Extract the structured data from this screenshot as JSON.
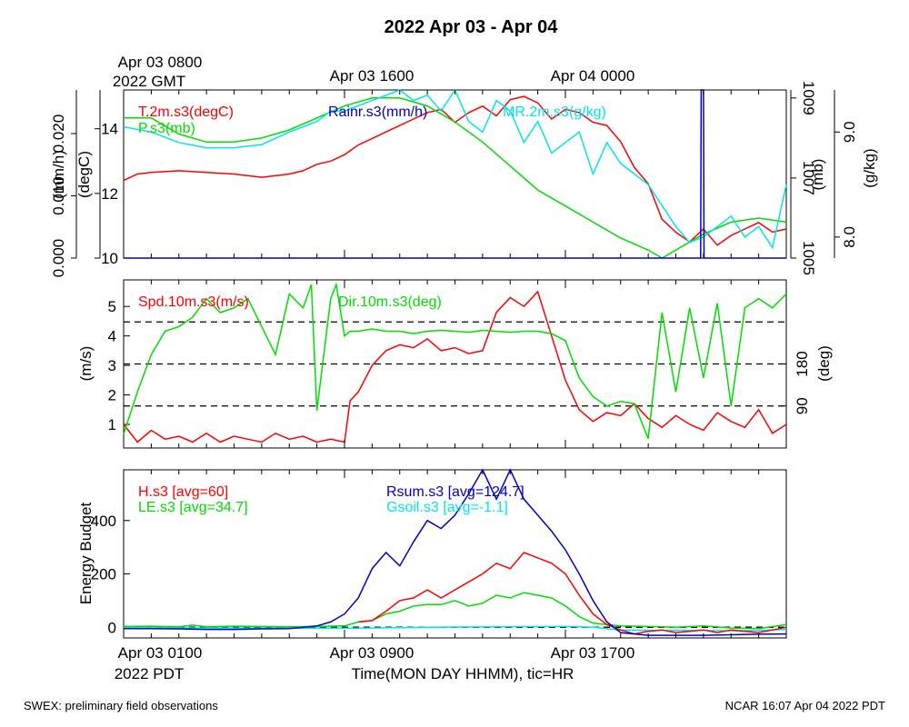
{
  "title": "2022 Apr 03 - Apr 04",
  "footer": {
    "left": "SWEX: preliminary field observations",
    "right": "NCAR 16:07 Apr 04 2022 PDT"
  },
  "top_axis": {
    "ticks": [
      {
        "label": "Apr 03 0800",
        "hour": 0
      },
      {
        "label": "Apr 03 1600",
        "hour": 8
      },
      {
        "label": "Apr 04 0000",
        "hour": 16
      }
    ],
    "sublabel": "2022 GMT"
  },
  "bottom_axis": {
    "ticks": [
      {
        "label": "Apr 03 0100",
        "hour": 0
      },
      {
        "label": "Apr 03 0900",
        "hour": 8
      },
      {
        "label": "Apr 03 1700",
        "hour": 16
      }
    ],
    "sublabel": "2022 PDT",
    "xlabel": "Time(MON DAY HHMM), tic=HR"
  },
  "colors": {
    "red": "#ff0000",
    "green": "#00dd00",
    "blue": "#0000cc",
    "cyan": "#00e5ee"
  },
  "chart_data": [
    {
      "type": "line",
      "panel": "met",
      "xlim": [
        0,
        24
      ],
      "axes": [
        {
          "label": "(mm/h)",
          "side": "left",
          "range": [
            0,
            0.027
          ],
          "ticks": [
            {
              "v": 0,
              "t": "0.000"
            },
            {
              "v": 0.01,
              "t": "0.010"
            },
            {
              "v": 0.02,
              "t": "0.020"
            }
          ]
        },
        {
          "label": "(degC)",
          "side": "left",
          "range": [
            10,
            15.2
          ],
          "ticks": [
            {
              "v": 10,
              "t": "10"
            },
            {
              "v": 12,
              "t": "12"
            },
            {
              "v": 14,
              "t": "14"
            }
          ]
        },
        {
          "label": "(mb)",
          "side": "right",
          "range": [
            1005,
            1009.2
          ],
          "ticks": [
            {
              "v": 1005,
              "t": "1005"
            },
            {
              "v": 1007,
              "t": "1007"
            },
            {
              "v": 1009,
              "t": "1009"
            }
          ]
        },
        {
          "label": "(g/kg)",
          "side": "right",
          "range": [
            7.8,
            9.4
          ],
          "ticks": [
            {
              "v": 8.0,
              "t": "8.0"
            },
            {
              "v": 9.0,
              "t": "9.0"
            }
          ]
        }
      ],
      "series": [
        {
          "name": "T.2m.s3(degC)",
          "color": "red",
          "axis": 1,
          "x": [
            0,
            0.5,
            1,
            2,
            3,
            4,
            5,
            6,
            6.5,
            7,
            7.5,
            8,
            8.5,
            9,
            9.5,
            10,
            10.5,
            11,
            11.5,
            12,
            12.5,
            13,
            13.5,
            14,
            14.5,
            15,
            15.5,
            16,
            16.5,
            17,
            17.5,
            18,
            18.5,
            19,
            19.5,
            20,
            20.5,
            21,
            21.5,
            22,
            22.5,
            23,
            23.5,
            24
          ],
          "y": [
            12.4,
            12.6,
            12.65,
            12.7,
            12.65,
            12.6,
            12.5,
            12.6,
            12.7,
            12.9,
            13.0,
            13.2,
            13.5,
            13.7,
            13.9,
            14.1,
            14.3,
            14.5,
            14.6,
            14.2,
            14.5,
            14.7,
            14.4,
            14.9,
            15.0,
            14.8,
            14.3,
            14.6,
            14.5,
            14.2,
            14.1,
            13.6,
            12.8,
            12.3,
            11.2,
            10.8,
            10.5,
            10.9,
            10.4,
            10.7,
            10.9,
            11.1,
            10.8,
            10.9
          ]
        },
        {
          "name": "P.s3(mb)",
          "color": "green",
          "axis": 2,
          "x": [
            0,
            1,
            2,
            3,
            4,
            5,
            6,
            7,
            8,
            9,
            10,
            11,
            12,
            13,
            14,
            15,
            16,
            17,
            18,
            19,
            19.5,
            20,
            21,
            22,
            23,
            24
          ],
          "y": [
            1008.5,
            1008.5,
            1008.1,
            1007.9,
            1007.9,
            1008.0,
            1008.2,
            1008.5,
            1008.8,
            1009.0,
            1009.0,
            1008.8,
            1008.4,
            1007.9,
            1007.3,
            1006.7,
            1006.3,
            1005.9,
            1005.5,
            1005.2,
            1005.0,
            1005.2,
            1005.6,
            1005.9,
            1006.0,
            1005.9
          ]
        },
        {
          "name": "MR.2m.s3(g/kg)",
          "color": "cyan",
          "axis": 3,
          "x": [
            0,
            1,
            2,
            3,
            4,
            5,
            6,
            7,
            7.5,
            8,
            8.5,
            9,
            9.5,
            10,
            10.5,
            11,
            11.5,
            12,
            12.5,
            13,
            13.5,
            14,
            14.5,
            15,
            15.5,
            16,
            16.5,
            17,
            17.5,
            18,
            18.5,
            19,
            19.5,
            20,
            20.5,
            21,
            21.5,
            22,
            22.5,
            23,
            23.5,
            24
          ],
          "y": [
            9.05,
            9.0,
            8.9,
            8.85,
            8.85,
            8.88,
            9.0,
            9.1,
            9.2,
            9.2,
            9.25,
            9.3,
            9.35,
            9.4,
            9.3,
            9.35,
            9.2,
            9.4,
            9.1,
            9.0,
            9.3,
            9.2,
            8.9,
            9.1,
            8.8,
            8.9,
            9.0,
            8.6,
            8.9,
            8.7,
            8.6,
            8.5,
            8.3,
            8.1,
            7.95,
            8.0,
            8.1,
            8.2,
            8.0,
            8.1,
            7.9,
            8.5
          ]
        },
        {
          "name": "Rainr.s3(mm/h)",
          "color": "blue",
          "axis": 0,
          "x": [
            0,
            20.9,
            20.92,
            21.0,
            21.02,
            24
          ],
          "y": [
            0,
            0,
            0.027,
            0.027,
            0,
            0
          ]
        }
      ]
    },
    {
      "type": "line",
      "panel": "wind",
      "xlim": [
        0,
        24
      ],
      "axes": [
        {
          "label": "(m/s)",
          "side": "left",
          "range": [
            0.2,
            5.9
          ],
          "ticks": [
            {
              "v": 1,
              "t": "1"
            },
            {
              "v": 2,
              "t": "2"
            },
            {
              "v": 3,
              "t": "3"
            },
            {
              "v": 4,
              "t": "4"
            },
            {
              "v": 5,
              "t": "5"
            }
          ]
        },
        {
          "label": "(deg)",
          "side": "right",
          "range": [
            0,
            360
          ],
          "ticks": [
            {
              "v": 90,
              "t": "90"
            },
            {
              "v": 180,
              "t": "180"
            }
          ]
        }
      ],
      "reference_lines_deg": [
        90,
        180,
        270
      ],
      "series": [
        {
          "name": "Spd.10m.s3(m/s)",
          "color": "red",
          "axis": 0,
          "x": [
            0,
            0.5,
            1,
            1.5,
            2,
            2.5,
            3,
            3.5,
            4,
            4.5,
            5,
            5.5,
            6,
            6.5,
            7,
            7.5,
            8,
            8.2,
            8.5,
            9,
            9.5,
            10,
            10.5,
            11,
            11.5,
            12,
            12.5,
            13,
            13.5,
            14,
            14.5,
            15,
            15.5,
            16,
            16.5,
            17,
            17.5,
            18,
            18.5,
            19,
            19.5,
            20,
            20.5,
            21,
            21.5,
            22,
            22.5,
            23,
            23.5,
            24
          ],
          "y": [
            1.0,
            0.4,
            0.8,
            0.5,
            0.6,
            0.4,
            0.7,
            0.4,
            0.6,
            0.5,
            0.4,
            0.7,
            0.5,
            0.6,
            0.4,
            0.5,
            0.4,
            1.8,
            2.1,
            3.0,
            3.5,
            3.7,
            3.6,
            3.9,
            3.5,
            3.6,
            3.4,
            3.5,
            4.8,
            5.3,
            5.0,
            5.5,
            4.0,
            2.5,
            1.5,
            1.1,
            1.4,
            1.3,
            1.7,
            1.2,
            0.9,
            1.3,
            1.0,
            0.8,
            1.4,
            1.1,
            0.9,
            1.5,
            0.7,
            1.0
          ]
        },
        {
          "name": "Dir.10m.s3(deg)",
          "color": "green",
          "axis": 1,
          "x": [
            0,
            0.5,
            1,
            1.5,
            2,
            2.5,
            3,
            3.5,
            4,
            4.5,
            5,
            5.5,
            6,
            6.5,
            6.8,
            7,
            7.5,
            7.7,
            8,
            8.2,
            8.5,
            9,
            9.5,
            10,
            10.5,
            11,
            11.5,
            12,
            12.5,
            13,
            13.5,
            14,
            14.5,
            15,
            15.5,
            16,
            16.5,
            17,
            17.5,
            18,
            18.5,
            19,
            19.5,
            20,
            20.5,
            21,
            21.5,
            22,
            22.5,
            23,
            23.5,
            24
          ],
          "y": [
            30,
            120,
            200,
            250,
            260,
            280,
            320,
            290,
            300,
            320,
            260,
            200,
            330,
            300,
            350,
            80,
            320,
            350,
            240,
            250,
            250,
            255,
            250,
            250,
            245,
            250,
            252,
            250,
            248,
            252,
            250,
            248,
            250,
            250,
            245,
            230,
            150,
            110,
            90,
            100,
            95,
            20,
            290,
            120,
            300,
            150,
            310,
            90,
            300,
            320,
            300,
            330
          ]
        }
      ]
    },
    {
      "type": "line",
      "panel": "energy",
      "xlim": [
        0,
        24
      ],
      "ylabel": "Energy Budget",
      "ylim": [
        -40,
        590
      ],
      "yticks": [
        0,
        200,
        400
      ],
      "series": [
        {
          "name": "H.s3 [avg=60]",
          "color": "red",
          "x": [
            8.5,
            9,
            9.5,
            10,
            10.5,
            11,
            11.5,
            12,
            12.5,
            13,
            13.5,
            14,
            14.5,
            15,
            15.5,
            16,
            16.5,
            17,
            17.5,
            18,
            18.5,
            19,
            19.5,
            20,
            20.5,
            21,
            21.5,
            22,
            22.5,
            23,
            23.5,
            24
          ],
          "y": [
            20,
            25,
            60,
            100,
            110,
            140,
            110,
            140,
            170,
            200,
            240,
            220,
            280,
            260,
            240,
            200,
            120,
            50,
            10,
            -10,
            -25,
            -15,
            -10,
            -20,
            -15,
            -10,
            -20,
            -10,
            -15,
            -20,
            -10,
            0
          ]
        },
        {
          "name": "LE.s3 [avg=34.7]",
          "color": "green",
          "x": [
            0,
            1,
            2,
            2.5,
            3,
            4,
            5,
            6,
            7,
            8,
            8.5,
            9,
            9.5,
            10,
            10.5,
            11,
            11.5,
            12,
            12.5,
            13,
            13.5,
            14,
            14.5,
            15,
            15.5,
            16,
            16.5,
            17,
            17.5,
            18,
            19,
            20,
            21,
            22,
            23,
            24
          ],
          "y": [
            3,
            4,
            2,
            8,
            2,
            4,
            3,
            2,
            3,
            5,
            20,
            25,
            50,
            60,
            80,
            85,
            85,
            100,
            80,
            90,
            120,
            110,
            130,
            120,
            110,
            80,
            40,
            15,
            10,
            5,
            3,
            0,
            5,
            -3,
            -5,
            10
          ]
        },
        {
          "name": "Rsum.s3 [avg=124.7]",
          "color": "blue",
          "x": [
            0,
            1,
            2,
            3,
            4,
            5,
            6,
            7,
            7.5,
            8,
            8.5,
            9,
            9.5,
            10,
            10.5,
            11,
            11.5,
            12,
            12.5,
            13,
            13.5,
            14,
            14.5,
            15,
            15.5,
            16,
            16.5,
            17,
            17.5,
            18,
            19,
            20,
            21,
            22,
            23,
            24
          ],
          "y": [
            -5,
            -5,
            -6,
            -8,
            -8,
            -6,
            -5,
            5,
            20,
            50,
            110,
            220,
            280,
            230,
            320,
            400,
            370,
            420,
            500,
            590,
            480,
            590,
            480,
            420,
            360,
            290,
            200,
            100,
            20,
            -20,
            -30,
            -30,
            -30,
            -28,
            -26,
            -25
          ]
        },
        {
          "name": "Gsoil.s3 [avg=-1.1]",
          "color": "cyan",
          "x": [
            0,
            4,
            8,
            12,
            16,
            17,
            18,
            19,
            20,
            21,
            22,
            23,
            24
          ],
          "y": [
            -2,
            -3,
            -4,
            1,
            3,
            0,
            -10,
            -12,
            -12,
            -12,
            -13,
            -12,
            -8
          ]
        }
      ]
    }
  ]
}
